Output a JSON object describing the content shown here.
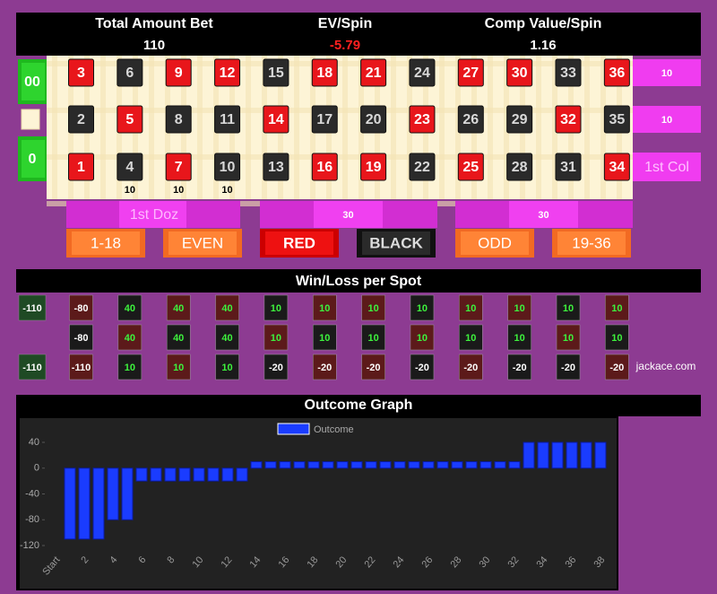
{
  "header": {
    "labels": [
      "Total Amount Bet",
      "EV/Spin",
      "Comp Value/Spin"
    ],
    "values": [
      "110",
      "-5.79",
      "1.16"
    ]
  },
  "table": {
    "zeros": [
      "00",
      "0"
    ],
    "rows": [
      [
        3,
        6,
        9,
        12,
        15,
        18,
        21,
        24,
        27,
        30,
        33,
        36
      ],
      [
        2,
        5,
        8,
        11,
        14,
        17,
        20,
        23,
        26,
        29,
        32,
        35
      ],
      [
        1,
        4,
        7,
        10,
        13,
        16,
        19,
        22,
        25,
        28,
        31,
        34
      ]
    ],
    "colors": [
      [
        "#e8161b",
        "#2a2a2a",
        "#e8161b",
        "#e8161b",
        "#2a2a2a",
        "#e8161b",
        "#e8161b",
        "#2a2a2a",
        "#e8161b",
        "#e8161b",
        "#2a2a2a",
        "#e8161b"
      ],
      [
        "#2a2a2a",
        "#e8161b",
        "#2a2a2a",
        "#2a2a2a",
        "#e8161b",
        "#2a2a2a",
        "#2a2a2a",
        "#e8161b",
        "#2a2a2a",
        "#2a2a2a",
        "#e8161b",
        "#2a2a2a"
      ],
      [
        "#e8161b",
        "#2a2a2a",
        "#e8161b",
        "#2a2a2a",
        "#2a2a2a",
        "#e8161b",
        "#e8161b",
        "#2a2a2a",
        "#e8161b",
        "#2a2a2a",
        "#2a2a2a",
        "#e8161b"
      ]
    ],
    "column_bets": [
      "10",
      "10",
      "1st Col"
    ],
    "street_bets": [
      "10",
      "10",
      "10"
    ],
    "dozens": [
      "1st Doz",
      "30",
      "30"
    ],
    "outside": [
      "1-18",
      "EVEN",
      "RED",
      "BLACK",
      "ODD",
      "19-36"
    ]
  },
  "winloss": {
    "title": "Win/Loss per Spot",
    "zeros": [
      "-110",
      "-110"
    ],
    "rows": [
      [
        -80,
        40,
        40,
        40,
        10,
        10,
        10,
        10,
        10,
        10,
        10,
        10
      ],
      [
        -80,
        40,
        40,
        40,
        10,
        10,
        10,
        10,
        10,
        10,
        10,
        10
      ],
      [
        -110,
        10,
        10,
        10,
        -20,
        -20,
        -20,
        -20,
        -20,
        -20,
        -20,
        -20
      ]
    ],
    "site": "jackace.com"
  },
  "chart_data": {
    "type": "bar",
    "title": "Outcome Graph",
    "categories": [
      "Start",
      null,
      "2",
      null,
      "4",
      null,
      "6",
      null,
      "8",
      null,
      "10",
      null,
      "12",
      null,
      "14",
      null,
      "16",
      null,
      "18",
      null,
      "20",
      null,
      "22",
      null,
      "24",
      null,
      "26",
      null,
      "28",
      null,
      "30",
      null,
      "32",
      null,
      "34",
      null,
      "36",
      null,
      "38"
    ],
    "series": [
      {
        "name": "Outcome",
        "color": "#1a3cff",
        "values": [
          0,
          -110,
          -110,
          -110,
          -80,
          -80,
          -20,
          -20,
          -20,
          -20,
          -20,
          -20,
          -20,
          -20,
          10,
          10,
          10,
          10,
          10,
          10,
          10,
          10,
          10,
          10,
          10,
          10,
          10,
          10,
          10,
          10,
          10,
          10,
          10,
          40,
          40,
          40,
          40,
          40,
          40
        ]
      }
    ],
    "ylim": [
      -120,
      40
    ],
    "yticks": [
      40,
      0,
      -40,
      -80,
      -120
    ],
    "grid": false
  }
}
